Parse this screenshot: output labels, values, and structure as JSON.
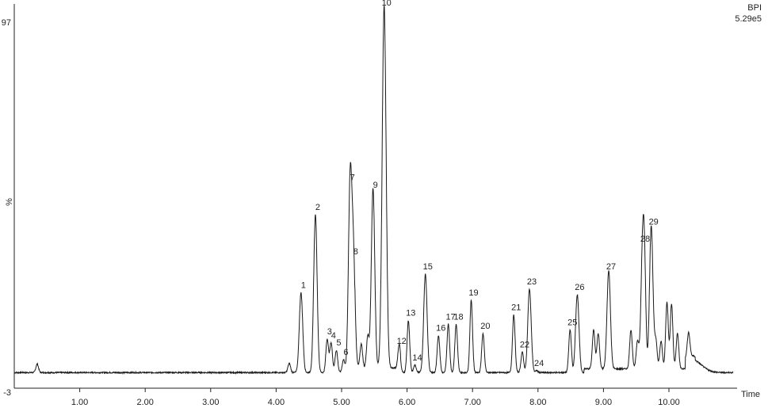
{
  "chart_data": {
    "type": "line",
    "trace_name": "BPI",
    "intensity": "5.29e5",
    "xlabel": "Time",
    "ylabel": "%",
    "xlim": [
      0.0,
      11.0
    ],
    "ylim": [
      -3,
      97
    ],
    "y_tick_labels": [
      "97",
      "-3"
    ],
    "x_ticks": [
      1.0,
      2.0,
      3.0,
      4.0,
      5.0,
      6.0,
      7.0,
      8.0,
      9.0,
      10.0
    ],
    "x_tick_labels": [
      "1.00",
      "2.00",
      "3.00",
      "4.00",
      "5.00",
      "6.00",
      "7.00",
      "8.00",
      "9.00",
      "10.00"
    ],
    "grid": false,
    "baseline": -0.5,
    "peaks": [
      {
        "label": "1",
        "x": 4.38,
        "y": 21
      },
      {
        "label": "2",
        "x": 4.6,
        "y": 42
      },
      {
        "label": "3",
        "x": 4.78,
        "y": 8.5
      },
      {
        "label": "4",
        "x": 4.84,
        "y": 7.5
      },
      {
        "label": "5",
        "x": 4.92,
        "y": 5.5
      },
      {
        "label": "6",
        "x": 5.03,
        "y": 3
      },
      {
        "label": "7",
        "x": 5.13,
        "y": 50
      },
      {
        "label": "8",
        "x": 5.18,
        "y": 30
      },
      {
        "label": "9",
        "x": 5.48,
        "y": 48
      },
      {
        "label": "10",
        "x": 5.65,
        "y": 97
      },
      {
        "label": "12",
        "x": 5.88,
        "y": 6
      },
      {
        "label": "13",
        "x": 6.02,
        "y": 13.5
      },
      {
        "label": "14",
        "x": 6.12,
        "y": 1.5
      },
      {
        "label": "15",
        "x": 6.28,
        "y": 26
      },
      {
        "label": "16",
        "x": 6.48,
        "y": 9.5
      },
      {
        "label": "17",
        "x": 6.63,
        "y": 12.5
      },
      {
        "label": "18",
        "x": 6.75,
        "y": 12.5
      },
      {
        "label": "19",
        "x": 6.98,
        "y": 19
      },
      {
        "label": "20",
        "x": 7.16,
        "y": 10
      },
      {
        "label": "21",
        "x": 7.63,
        "y": 15
      },
      {
        "label": "22",
        "x": 7.76,
        "y": 5
      },
      {
        "label": "23",
        "x": 7.87,
        "y": 22
      },
      {
        "label": "24",
        "x": 7.98,
        "y": 0
      },
      {
        "label": "25",
        "x": 8.49,
        "y": 11
      },
      {
        "label": "26",
        "x": 8.6,
        "y": 20.5
      },
      {
        "label": "27",
        "x": 9.08,
        "y": 26
      },
      {
        "label": "28",
        "x": 9.6,
        "y": 33.5
      },
      {
        "label": "29",
        "x": 9.73,
        "y": 38
      }
    ],
    "unlabeled_peaks": [
      {
        "x": 0.35,
        "y": 1.8
      },
      {
        "x": 4.2,
        "y": 2
      },
      {
        "x": 5.3,
        "y": 6
      },
      {
        "x": 5.4,
        "y": 8
      },
      {
        "x": 8.85,
        "y": 10
      },
      {
        "x": 8.92,
        "y": 9
      },
      {
        "x": 9.42,
        "y": 10
      },
      {
        "x": 9.52,
        "y": 7
      },
      {
        "x": 9.63,
        "y": 16
      },
      {
        "x": 9.8,
        "y": 7
      },
      {
        "x": 9.88,
        "y": 7
      },
      {
        "x": 9.97,
        "y": 17.5
      },
      {
        "x": 10.04,
        "y": 17
      },
      {
        "x": 10.13,
        "y": 9
      },
      {
        "x": 10.3,
        "y": 6
      }
    ]
  }
}
